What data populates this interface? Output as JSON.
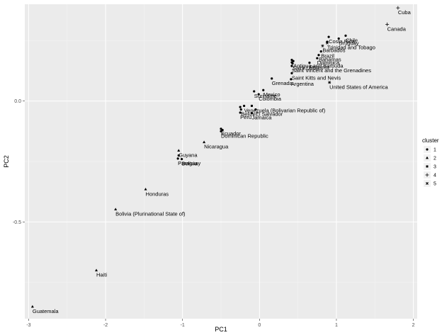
{
  "chart_data": {
    "type": "scatter",
    "xlabel": "PC1",
    "ylabel": "PC2",
    "xlim": [
      -3.05,
      2.05
    ],
    "ylim": [
      -0.9,
      0.4
    ],
    "x_ticks": [
      -3,
      -2,
      -1,
      0,
      1,
      2
    ],
    "y_ticks": [
      -0.5,
      0.0
    ],
    "x_tick_labels": [
      "-3",
      "-2",
      "-1",
      "0",
      "1",
      "2"
    ],
    "y_tick_labels": [
      "-0.5",
      "0.0"
    ],
    "grid": true,
    "legend": {
      "title": "cluster",
      "placement": "right",
      "entries": [
        "1",
        "2",
        "3",
        "4",
        "5"
      ]
    },
    "points": [
      {
        "label": "Cuba",
        "x": 1.8,
        "y": 0.385,
        "cluster": 4
      },
      {
        "label": "Canada",
        "x": 1.66,
        "y": 0.317,
        "cluster": 4
      },
      {
        "label": "Costa Rica",
        "x": 0.9,
        "y": 0.265,
        "cluster": 1
      },
      {
        "label": "Chile",
        "x": 1.12,
        "y": 0.27,
        "cluster": 1
      },
      {
        "label": "Uruguay",
        "x": 1.03,
        "y": 0.258,
        "cluster": 1
      },
      {
        "label": "Trinidad and Tobago",
        "x": 0.88,
        "y": 0.24,
        "cluster": 5
      },
      {
        "label": "Barbados",
        "x": 0.82,
        "y": 0.228,
        "cluster": 5
      },
      {
        "label": "Brazil",
        "x": 0.8,
        "y": 0.205,
        "cluster": 1
      },
      {
        "label": "Bahamas",
        "x": 0.77,
        "y": 0.19,
        "cluster": 1
      },
      {
        "label": "Dominica",
        "x": 0.75,
        "y": 0.177,
        "cluster": 1
      },
      {
        "label": "Antigua and Barbuda",
        "x": 0.44,
        "y": 0.165,
        "cluster": 1
      },
      {
        "label": "Saint Lucia",
        "x": 0.43,
        "y": 0.155,
        "cluster": 1
      },
      {
        "label": "Saint Vincent and the Grenadines",
        "x": 0.42,
        "y": 0.145,
        "cluster": 1
      },
      {
        "label": "Panama",
        "x": 0.65,
        "y": 0.158,
        "cluster": 1
      },
      {
        "label": "Saint Kitts and Nevis",
        "x": 0.42,
        "y": 0.115,
        "cluster": 1
      },
      {
        "label": "United States of America",
        "x": 0.91,
        "y": 0.077,
        "cluster": 5
      },
      {
        "label": "Argentina",
        "x": 0.41,
        "y": 0.09,
        "cluster": 1
      },
      {
        "label": "Grenada",
        "x": 0.16,
        "y": 0.093,
        "cluster": 1
      },
      {
        "label": "Mexico",
        "x": 0.05,
        "y": 0.045,
        "cluster": 1
      },
      {
        "label": "Suriname",
        "x": -0.07,
        "y": 0.04,
        "cluster": 1
      },
      {
        "label": "Colombia",
        "x": -0.01,
        "y": 0.028,
        "cluster": 1
      },
      {
        "label": "Venezuela (Bolivarian Republic of)",
        "x": -0.2,
        "y": -0.02,
        "cluster": 1
      },
      {
        "label": "El Salvador",
        "x": -0.05,
        "y": -0.035,
        "cluster": 1
      },
      {
        "label": "Belize",
        "x": -0.24,
        "y": -0.035,
        "cluster": 1
      },
      {
        "label": "Peru",
        "x": -0.25,
        "y": -0.048,
        "cluster": 1
      },
      {
        "label": "Jamaica",
        "x": -0.1,
        "y": -0.05,
        "cluster": 1
      },
      {
        "label": "Ecuador",
        "x": -0.5,
        "y": -0.115,
        "cluster": 1
      },
      {
        "label": "Dominican Republic",
        "x": -0.5,
        "y": -0.125,
        "cluster": 1
      },
      {
        "label": "Nicaragua",
        "x": -0.72,
        "y": -0.17,
        "cluster": 2
      },
      {
        "label": "Guyana",
        "x": -1.05,
        "y": -0.205,
        "cluster": 2
      },
      {
        "label": "Paraguay",
        "x": -1.06,
        "y": -0.238,
        "cluster": 1
      },
      {
        "label": "Bolivia",
        "x": -1.01,
        "y": -0.24,
        "cluster": 1
      },
      {
        "label": "Honduras",
        "x": -1.48,
        "y": -0.365,
        "cluster": 2
      },
      {
        "label": "Bolivia (Plurinational State of)",
        "x": -1.87,
        "y": -0.448,
        "cluster": 2
      },
      {
        "label": "Haiti",
        "x": -2.12,
        "y": -0.7,
        "cluster": 2
      },
      {
        "label": "Guatemala",
        "x": -2.95,
        "y": -0.85,
        "cluster": 2
      }
    ],
    "extra_markers": [
      {
        "x": 0.88,
        "y": 0.245,
        "cluster": 1
      },
      {
        "x": 0.42,
        "y": 0.17,
        "cluster": 1
      },
      {
        "x": 0.42,
        "y": 0.16,
        "cluster": 1
      },
      {
        "x": -0.48,
        "y": -0.12,
        "cluster": 1
      },
      {
        "x": -0.25,
        "y": -0.025,
        "cluster": 1
      },
      {
        "x": -0.1,
        "y": -0.02,
        "cluster": 3
      },
      {
        "x": -1.05,
        "y": -0.225,
        "cluster": 1
      }
    ]
  }
}
